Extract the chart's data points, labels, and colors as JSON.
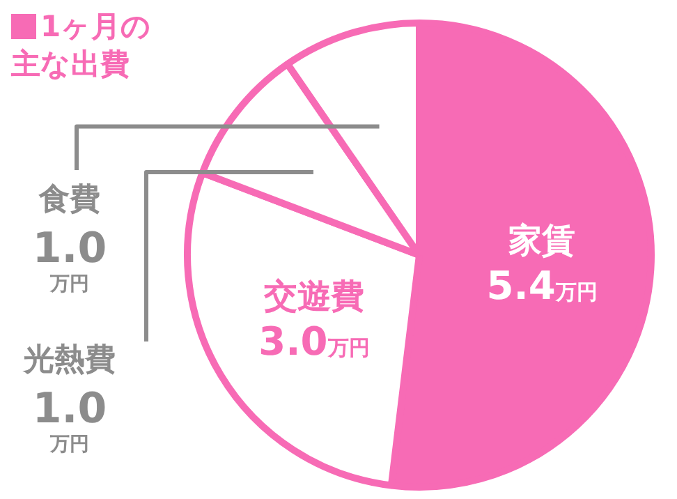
{
  "chart_data": {
    "type": "pie",
    "title": "1ヶ月の主な出費",
    "categories": [
      "家賃",
      "交遊費",
      "光熱費",
      "食費"
    ],
    "values": [
      5.4,
      3.0,
      1.0,
      1.0
    ],
    "colors": [
      "#f76bb5",
      "#ffffff",
      "#ffffff",
      "#ffffff"
    ],
    "value_labels": [
      "5.4万円",
      "3.0万円",
      "1.0万円",
      "1.0万円"
    ],
    "legend": false
  }
}
